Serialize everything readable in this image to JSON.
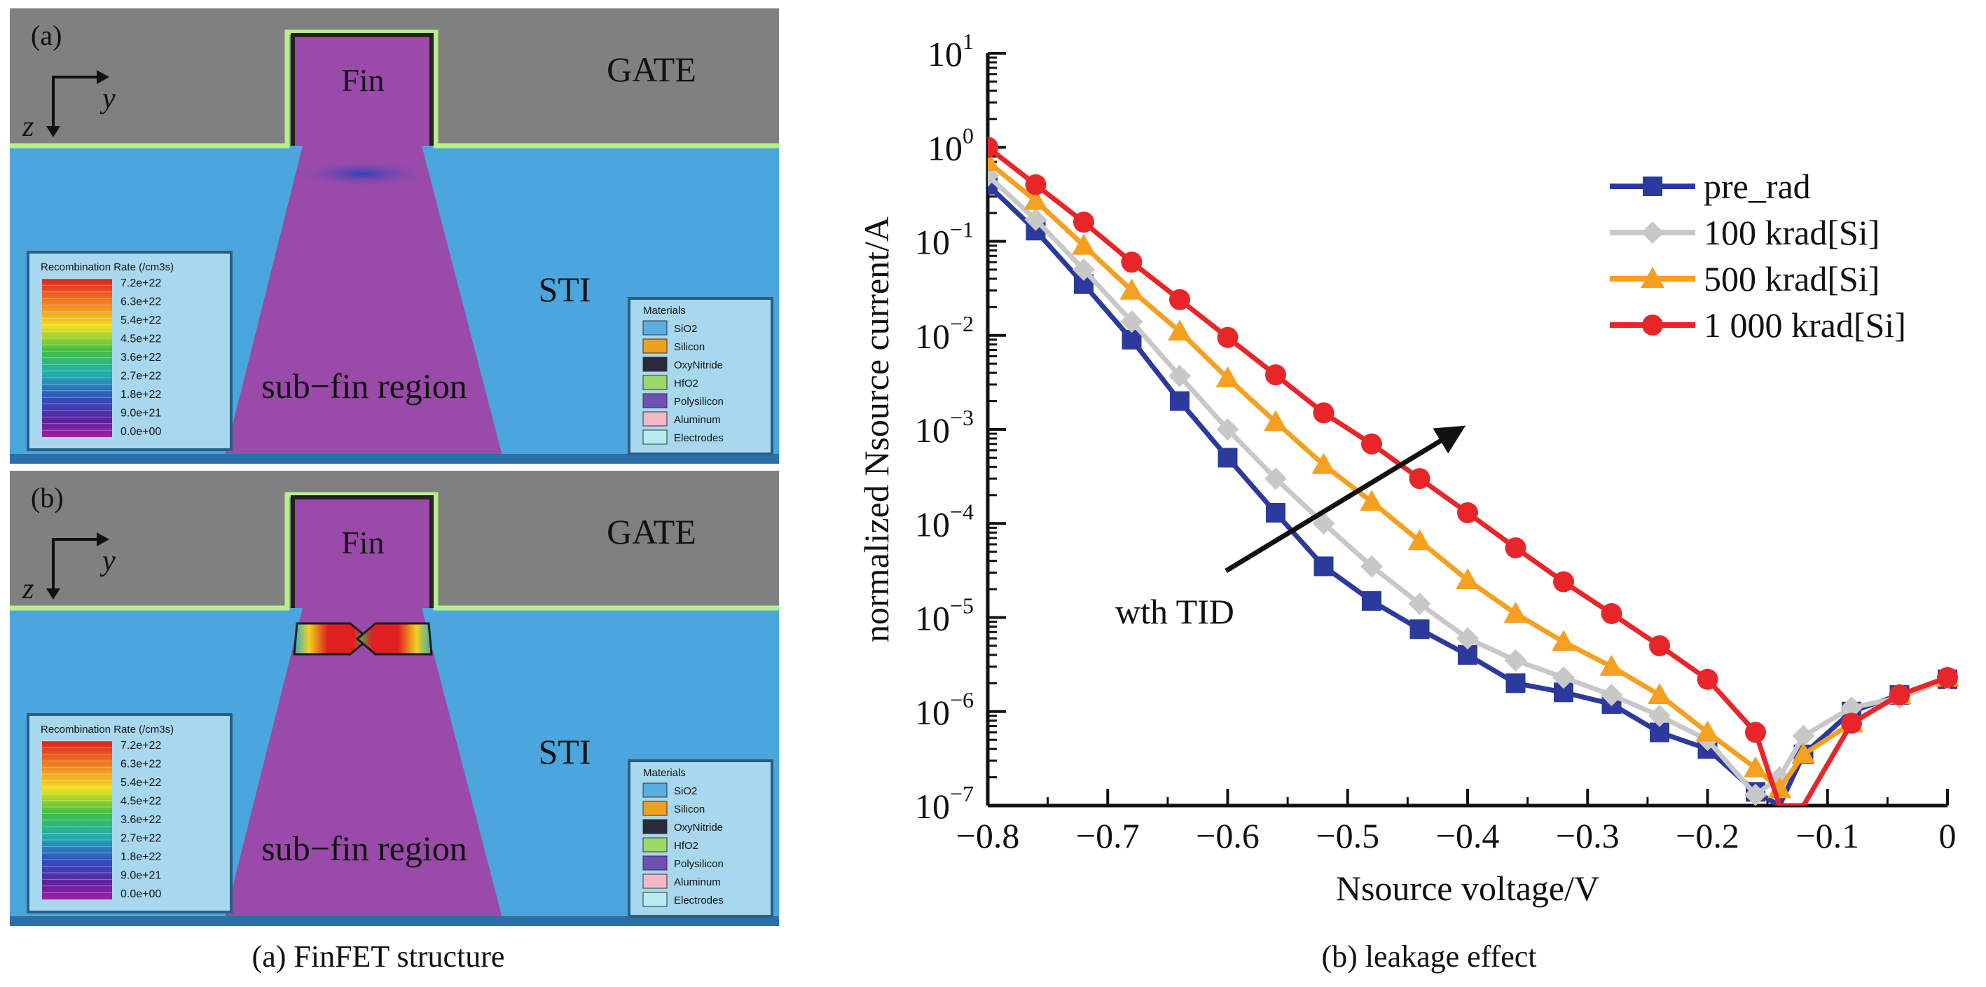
{
  "left_panel": {
    "caption": "(a) FinFET structure",
    "panels": [
      {
        "tag": "(a)",
        "gate_label": "GATE",
        "fin_label": "Fin",
        "sti_label": "STI",
        "subfin_label": "sub−fin region",
        "axis_z": "z",
        "axis_y": "y"
      },
      {
        "tag": "(b)",
        "gate_label": "GATE",
        "fin_label": "Fin",
        "sti_label": "STI",
        "subfin_label": "sub−fin region",
        "axis_z": "z",
        "axis_y": "y"
      }
    ],
    "colorbar": {
      "title": "Recombination Rate (/cm3s)",
      "ticks": [
        "7.2e+22",
        "6.3e+22",
        "5.4e+22",
        "4.5e+22",
        "3.6e+22",
        "2.7e+22",
        "1.8e+22",
        "9.0e+21",
        "0.0e+00"
      ]
    },
    "materials": {
      "title": "Materials",
      "items": [
        {
          "name": "SiO2",
          "color": "#5aaee0"
        },
        {
          "name": "Silicon",
          "color": "#f0a020"
        },
        {
          "name": "OxyNitride",
          "color": "#2a2a3a"
        },
        {
          "name": "HfO2",
          "color": "#9ad86a"
        },
        {
          "name": "Polysilicon",
          "color": "#7050b0"
        },
        {
          "name": "Aluminum",
          "color": "#f2b8c8"
        },
        {
          "name": "Electrodes",
          "color": "#b8ecf0"
        }
      ]
    },
    "colors": {
      "gate": "#808080",
      "sti": "#4aa6dc",
      "fin": "#9a4aa8",
      "liner": "#b6f08c"
    }
  },
  "chart_data": {
    "type": "line",
    "caption": "(b) leakage effect",
    "xlabel": "Nsource voltage/V",
    "ylabel": "normalized Nsource current/A",
    "xlim": [
      -0.8,
      0
    ],
    "ylim": [
      1e-07,
      10
    ],
    "yscale": "log",
    "x_ticks": [
      "−0.8",
      "−0.7",
      "−0.6",
      "−0.5",
      "−0.4",
      "−0.3",
      "−0.2",
      "−0.1",
      "0"
    ],
    "y_tick_exponents": [
      "1",
      "0",
      "−1",
      "−2",
      "−3",
      "−4",
      "−5",
      "−6",
      "−7"
    ],
    "y_tick_base": "10",
    "legend_position": "top-right",
    "annotation": "wth TID",
    "x": [
      -0.8,
      -0.76,
      -0.72,
      -0.68,
      -0.64,
      -0.6,
      -0.56,
      -0.52,
      -0.48,
      -0.44,
      -0.4,
      -0.36,
      -0.32,
      -0.28,
      -0.24,
      -0.2,
      -0.16,
      -0.14,
      -0.12,
      -0.08,
      -0.04,
      0
    ],
    "series": [
      {
        "name": "pre_rad",
        "color": "#2b3a9c",
        "marker": "square",
        "values": [
          0.4,
          0.13,
          0.035,
          0.009,
          0.002,
          0.0005,
          0.00013,
          3.5e-05,
          1.5e-05,
          7.5e-06,
          4e-06,
          2e-06,
          1.6e-06,
          1.2e-06,
          6e-07,
          4e-07,
          1.4e-07,
          1e-07,
          3.5e-07,
          1e-06,
          1.5e-06,
          2.2e-06
        ]
      },
      {
        "name": "100 krad[Si]",
        "color": "#c8c8c8",
        "marker": "diamond",
        "values": [
          0.5,
          0.17,
          0.05,
          0.014,
          0.0037,
          0.001,
          0.0003,
          0.0001,
          3.5e-05,
          1.4e-05,
          6e-06,
          3.5e-06,
          2.3e-06,
          1.5e-06,
          9e-07,
          5e-07,
          1.3e-07,
          2e-07,
          5.5e-07,
          1.1e-06,
          1.4e-06,
          2.2e-06
        ]
      },
      {
        "name": "500 krad[Si]",
        "color": "#f5a020",
        "marker": "triangle",
        "values": [
          0.7,
          0.27,
          0.09,
          0.03,
          0.011,
          0.0035,
          0.0012,
          0.00042,
          0.00017,
          6.5e-05,
          2.5e-05,
          1.1e-05,
          5.5e-06,
          3e-06,
          1.5e-06,
          6e-07,
          2.5e-07,
          1.5e-07,
          3.5e-07,
          7.5e-07,
          1.5e-06,
          2.3e-06
        ]
      },
      {
        "name": "1 000 krad[Si]",
        "color": "#e8262a",
        "marker": "circle",
        "values": [
          1.0,
          0.4,
          0.16,
          0.06,
          0.024,
          0.0095,
          0.0038,
          0.0015,
          0.0007,
          0.0003,
          0.00013,
          5.5e-05,
          2.4e-05,
          1.1e-05,
          5e-06,
          2.2e-06,
          6e-07,
          1e-07,
          1e-07,
          7.5e-07,
          1.5e-06,
          2.3e-06
        ]
      }
    ]
  }
}
